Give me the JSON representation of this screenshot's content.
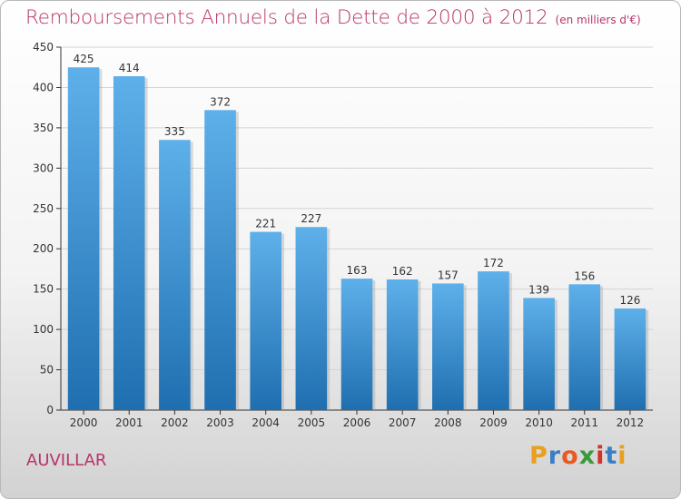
{
  "title": "Remboursements Annuels de la Dette de 2000 à 2012",
  "unit_note": "(en milliers d'€)",
  "commune": "AUVILLAR",
  "brand": {
    "letters": [
      "P",
      "r",
      "o",
      "x",
      "i",
      "t",
      "i"
    ],
    "colors": [
      "#e8a01e",
      "#3a7ec4",
      "#e85a1e",
      "#3a9a3a",
      "#d2322a",
      "#3a7ec4",
      "#e8a01e"
    ]
  },
  "colors": {
    "title": "#b8336a",
    "bar_top": "#5eb0ea",
    "bar_bottom": "#1f6fb0"
  },
  "chart_data": {
    "type": "bar",
    "categories": [
      "2000",
      "2001",
      "2002",
      "2003",
      "2004",
      "2005",
      "2006",
      "2007",
      "2008",
      "2009",
      "2010",
      "2011",
      "2012"
    ],
    "values": [
      425,
      414,
      335,
      372,
      221,
      227,
      163,
      162,
      157,
      172,
      139,
      156,
      126
    ],
    "ylim": [
      0,
      450
    ],
    "yticks": [
      0,
      50,
      100,
      150,
      200,
      250,
      300,
      350,
      400,
      450
    ],
    "grid": true
  }
}
